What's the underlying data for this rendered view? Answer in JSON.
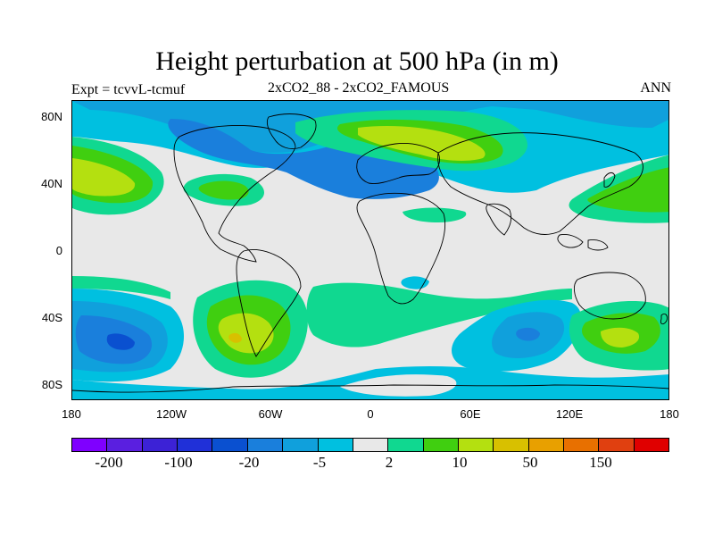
{
  "title": "Height perturbation at 500 hPa (in m)",
  "subtitle_left": "Expt = tcvvL-tcmuf",
  "subtitle_center": "2xCO2_88 - 2xCO2_FAMOUS",
  "subtitle_right": "ANN",
  "lat_ticks": [
    "80N",
    "40N",
    "0",
    "40S",
    "80S"
  ],
  "lon_ticks": [
    "180",
    "120W",
    "60W",
    "0",
    "60E",
    "120E",
    "180"
  ],
  "colorbar": {
    "colors": [
      "#7f00ff",
      "#5a1fe0",
      "#3c22d6",
      "#2030d8",
      "#0a50d0",
      "#1a7fdc",
      "#10a0dc",
      "#00c0e0",
      "#e8e8e8",
      "#10d890",
      "#40cf10",
      "#b4e010",
      "#d8c000",
      "#e8a000",
      "#e87000",
      "#e04010",
      "#e00000"
    ],
    "labels": [
      "-200",
      "-100",
      "-20",
      "-5",
      "2",
      "10",
      "50",
      "150"
    ]
  },
  "colors": {
    "background": "#e8e8e8",
    "positive_light": "#10d890",
    "positive_mid": "#40cf10",
    "positive_high": "#b4e010",
    "positive_peak": "#d8c000",
    "negative_light": "#00c0e0",
    "negative_mid": "#10a0dc",
    "negative_strong": "#1a7fdc",
    "negative_peak": "#0a50d0"
  }
}
